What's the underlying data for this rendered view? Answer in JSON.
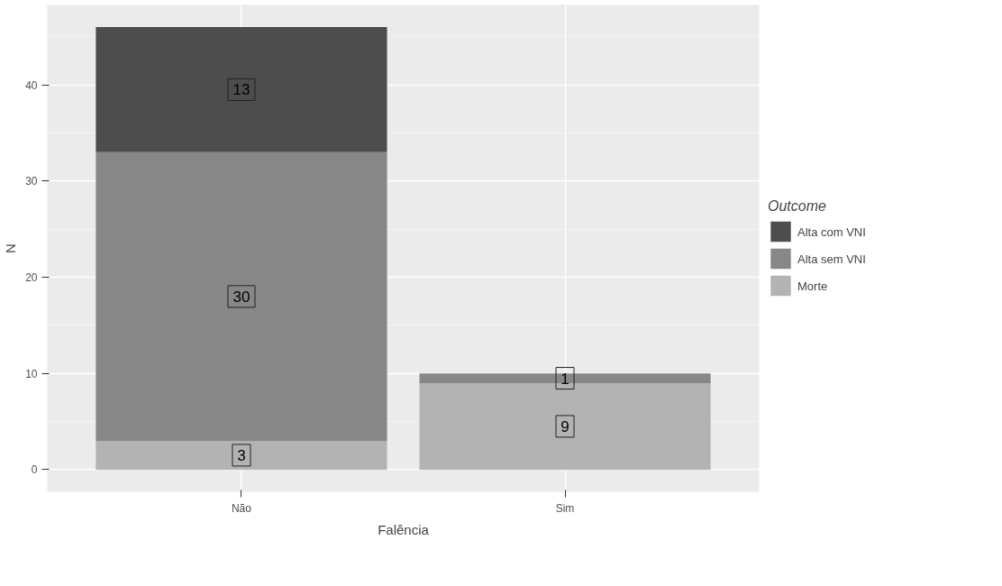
{
  "chart_data": {
    "type": "bar",
    "stacked": true,
    "xlabel": "Falência",
    "ylabel": "N",
    "legend_title": "Outcome",
    "categories": [
      "Não",
      "Sim"
    ],
    "series": [
      {
        "name": "Morte",
        "color": "#b3b3b3",
        "values": [
          3,
          9
        ]
      },
      {
        "name": "Alta sem VNI",
        "color": "#878787",
        "values": [
          30,
          1
        ]
      },
      {
        "name": "Alta com VNI",
        "color": "#4d4d4d",
        "values": [
          13,
          0
        ]
      }
    ],
    "value_labels": [
      [
        "3",
        "9"
      ],
      [
        "30",
        "1"
      ],
      [
        "13",
        null
      ]
    ],
    "ylim": [
      -2.3,
      48.3
    ],
    "yticks": [
      0,
      10,
      20,
      30,
      40
    ],
    "grid": true,
    "legend": "right"
  }
}
